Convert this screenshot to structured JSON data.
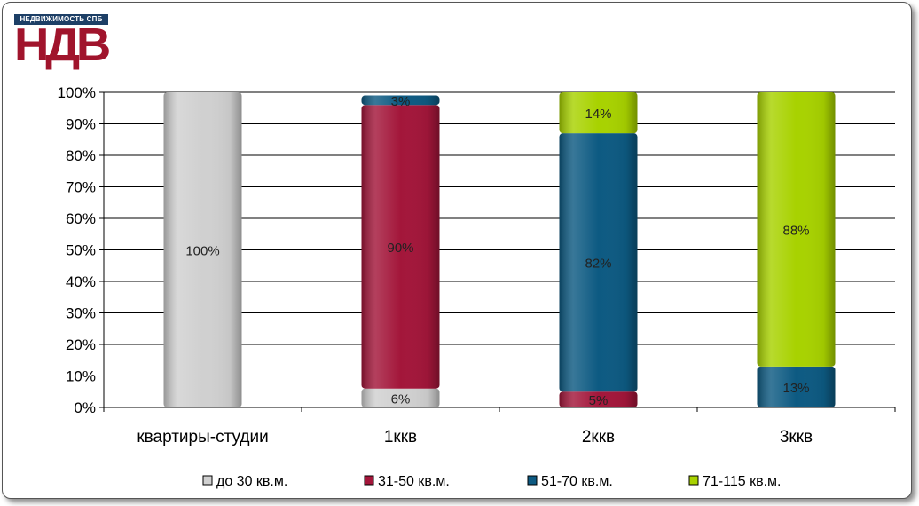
{
  "logo": {
    "tagline": "НЕДВИЖИМОСТЬ СПБ",
    "brand": "НДВ"
  },
  "chart_data": {
    "type": "bar",
    "stacked": true,
    "percent": true,
    "categories": [
      "квартиры-студии",
      "1ккв",
      "2ккв",
      "3ккв"
    ],
    "series": [
      {
        "name": "до 30 кв.м.",
        "color": "#d0d0d0",
        "values": [
          100,
          6,
          0,
          0
        ],
        "labels": [
          "100%",
          "6%",
          "",
          ""
        ]
      },
      {
        "name": "31-50 кв.м.",
        "color": "#a3163a",
        "values": [
          0,
          90,
          5,
          0
        ],
        "labels": [
          "",
          "90%",
          "5%",
          ""
        ]
      },
      {
        "name": "51-70 кв.м.",
        "color": "#0d5a82",
        "values": [
          0,
          3,
          82,
          13
        ],
        "labels": [
          "",
          "3%",
          "82%",
          "13%"
        ]
      },
      {
        "name": "71-115 кв.м.",
        "color": "#a8d200",
        "values": [
          0,
          0,
          14,
          88
        ],
        "labels": [
          "",
          "",
          "14%",
          "88%"
        ]
      }
    ],
    "yticks": [
      "0%",
      "10%",
      "20%",
      "30%",
      "40%",
      "50%",
      "60%",
      "70%",
      "80%",
      "90%",
      "100%"
    ],
    "ylim": [
      0,
      100
    ],
    "grid": true,
    "legend": "bottom"
  }
}
